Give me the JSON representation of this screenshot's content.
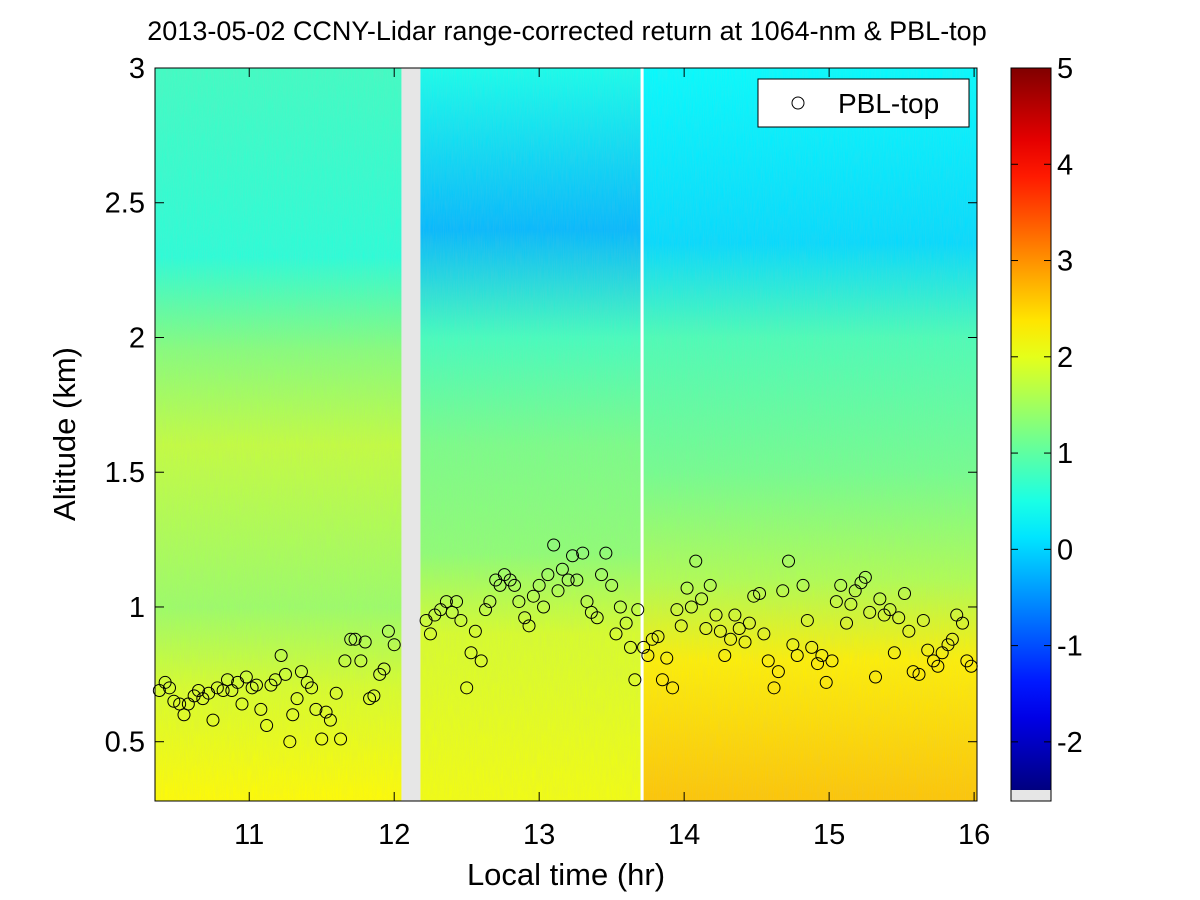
{
  "chart_data": {
    "type": "heatmap",
    "title": "2013-05-02 CCNY-Lidar range-corrected return at 1064-nm & PBL-top",
    "xlabel": "Local time (hr)",
    "ylabel": "Altitude (km)",
    "xlim": [
      10.35,
      16.02
    ],
    "ylim": [
      0.28,
      3.0
    ],
    "xticks": [
      11,
      12,
      13,
      14,
      15,
      16
    ],
    "xtick_labels": [
      "11",
      "12",
      "13",
      "14",
      "15",
      "16"
    ],
    "yticks": [
      0.5,
      1,
      1.5,
      2,
      2.5,
      3
    ],
    "ytick_labels": [
      "0.5",
      "1",
      "1.5",
      "2",
      "2.5",
      "3"
    ],
    "colorbar": {
      "range": [
        -2.5,
        5
      ],
      "ticks": [
        -2,
        -1,
        0,
        1,
        2,
        3,
        4,
        5
      ],
      "tick_labels": [
        "-2",
        "-1",
        "0",
        "1",
        "2",
        "3",
        "4",
        "5"
      ],
      "colormap": "jet"
    },
    "data_gaps": [
      [
        12.05,
        12.18
      ],
      [
        13.7,
        13.72
      ]
    ],
    "legend": {
      "entries": [
        "PBL-top"
      ],
      "position": "top-right",
      "marker": "open-circle"
    },
    "field_profiles": [
      {
        "segment": "10.35-12.05 h",
        "altitudes_km": [
          0.3,
          0.7,
          1.0,
          1.6,
          1.95,
          2.3,
          3.0
        ],
        "values": [
          2.2,
          1.9,
          1.45,
          1.75,
          1.3,
          0.6,
          0.75
        ]
      },
      {
        "segment": "12.18-13.7 h",
        "altitudes_km": [
          0.3,
          0.9,
          1.2,
          1.6,
          2.0,
          2.4,
          3.0
        ],
        "values": [
          2.1,
          1.9,
          1.35,
          1.2,
          0.8,
          -0.2,
          0.45
        ]
      },
      {
        "segment": "13.72-16.02 h",
        "altitudes_km": [
          0.3,
          0.8,
          1.1,
          1.5,
          2.0,
          2.35,
          3.0
        ],
        "values": [
          2.6,
          2.3,
          1.6,
          1.15,
          0.85,
          0.05,
          0.3
        ]
      }
    ],
    "series": [
      {
        "name": "PBL-top",
        "points": [
          [
            10.38,
            0.69
          ],
          [
            10.42,
            0.72
          ],
          [
            10.45,
            0.7
          ],
          [
            10.48,
            0.65
          ],
          [
            10.52,
            0.64
          ],
          [
            10.55,
            0.6
          ],
          [
            10.58,
            0.64
          ],
          [
            10.62,
            0.67
          ],
          [
            10.65,
            0.69
          ],
          [
            10.68,
            0.66
          ],
          [
            10.72,
            0.68
          ],
          [
            10.75,
            0.58
          ],
          [
            10.78,
            0.7
          ],
          [
            10.82,
            0.69
          ],
          [
            10.85,
            0.73
          ],
          [
            10.88,
            0.69
          ],
          [
            10.92,
            0.72
          ],
          [
            10.95,
            0.64
          ],
          [
            10.98,
            0.74
          ],
          [
            11.02,
            0.7
          ],
          [
            11.05,
            0.71
          ],
          [
            11.08,
            0.62
          ],
          [
            11.12,
            0.56
          ],
          [
            11.15,
            0.71
          ],
          [
            11.18,
            0.73
          ],
          [
            11.22,
            0.82
          ],
          [
            11.25,
            0.75
          ],
          [
            11.28,
            0.5
          ],
          [
            11.3,
            0.6
          ],
          [
            11.33,
            0.66
          ],
          [
            11.36,
            0.76
          ],
          [
            11.4,
            0.72
          ],
          [
            11.43,
            0.7
          ],
          [
            11.46,
            0.62
          ],
          [
            11.5,
            0.51
          ],
          [
            11.53,
            0.61
          ],
          [
            11.56,
            0.58
          ],
          [
            11.6,
            0.68
          ],
          [
            11.63,
            0.51
          ],
          [
            11.66,
            0.8
          ],
          [
            11.7,
            0.88
          ],
          [
            11.73,
            0.88
          ],
          [
            11.77,
            0.8
          ],
          [
            11.8,
            0.87
          ],
          [
            11.83,
            0.66
          ],
          [
            11.86,
            0.67
          ],
          [
            11.9,
            0.75
          ],
          [
            11.93,
            0.77
          ],
          [
            11.96,
            0.91
          ],
          [
            12.0,
            0.86
          ],
          [
            12.22,
            0.95
          ],
          [
            12.25,
            0.9
          ],
          [
            12.28,
            0.97
          ],
          [
            12.32,
            0.99
          ],
          [
            12.36,
            1.02
          ],
          [
            12.4,
            0.98
          ],
          [
            12.43,
            1.02
          ],
          [
            12.46,
            0.95
          ],
          [
            12.5,
            0.7
          ],
          [
            12.53,
            0.83
          ],
          [
            12.56,
            0.91
          ],
          [
            12.6,
            0.8
          ],
          [
            12.63,
            0.99
          ],
          [
            12.66,
            1.02
          ],
          [
            12.7,
            1.1
          ],
          [
            12.73,
            1.08
          ],
          [
            12.76,
            1.12
          ],
          [
            12.8,
            1.1
          ],
          [
            12.83,
            1.08
          ],
          [
            12.86,
            1.02
          ],
          [
            12.9,
            0.96
          ],
          [
            12.93,
            0.93
          ],
          [
            12.96,
            1.04
          ],
          [
            13.0,
            1.08
          ],
          [
            13.03,
            1.0
          ],
          [
            13.06,
            1.12
          ],
          [
            13.1,
            1.23
          ],
          [
            13.13,
            1.06
          ],
          [
            13.16,
            1.14
          ],
          [
            13.2,
            1.1
          ],
          [
            13.23,
            1.19
          ],
          [
            13.26,
            1.1
          ],
          [
            13.3,
            1.2
          ],
          [
            13.33,
            1.02
          ],
          [
            13.36,
            0.98
          ],
          [
            13.4,
            0.96
          ],
          [
            13.43,
            1.12
          ],
          [
            13.46,
            1.2
          ],
          [
            13.5,
            1.08
          ],
          [
            13.53,
            0.9
          ],
          [
            13.56,
            1.0
          ],
          [
            13.6,
            0.94
          ],
          [
            13.63,
            0.85
          ],
          [
            13.66,
            0.73
          ],
          [
            13.68,
            0.99
          ],
          [
            13.72,
            0.85
          ],
          [
            13.75,
            0.82
          ],
          [
            13.78,
            0.88
          ],
          [
            13.82,
            0.89
          ],
          [
            13.85,
            0.73
          ],
          [
            13.88,
            0.81
          ],
          [
            13.92,
            0.7
          ],
          [
            13.95,
            0.99
          ],
          [
            13.98,
            0.93
          ],
          [
            14.02,
            1.07
          ],
          [
            14.05,
            1.0
          ],
          [
            14.08,
            1.17
          ],
          [
            14.12,
            1.03
          ],
          [
            14.15,
            0.92
          ],
          [
            14.18,
            1.08
          ],
          [
            14.22,
            0.97
          ],
          [
            14.25,
            0.91
          ],
          [
            14.28,
            0.82
          ],
          [
            14.32,
            0.88
          ],
          [
            14.35,
            0.97
          ],
          [
            14.38,
            0.92
          ],
          [
            14.42,
            0.87
          ],
          [
            14.45,
            0.94
          ],
          [
            14.48,
            1.04
          ],
          [
            14.52,
            1.05
          ],
          [
            14.55,
            0.9
          ],
          [
            14.58,
            0.8
          ],
          [
            14.62,
            0.7
          ],
          [
            14.65,
            0.76
          ],
          [
            14.68,
            1.06
          ],
          [
            14.72,
            1.17
          ],
          [
            14.75,
            0.86
          ],
          [
            14.78,
            0.82
          ],
          [
            14.82,
            1.08
          ],
          [
            14.85,
            0.95
          ],
          [
            14.88,
            0.85
          ],
          [
            14.92,
            0.79
          ],
          [
            14.95,
            0.82
          ],
          [
            14.98,
            0.72
          ],
          [
            15.02,
            0.8
          ],
          [
            15.05,
            1.02
          ],
          [
            15.08,
            1.08
          ],
          [
            15.12,
            0.94
          ],
          [
            15.15,
            1.01
          ],
          [
            15.18,
            1.06
          ],
          [
            15.22,
            1.09
          ],
          [
            15.25,
            1.11
          ],
          [
            15.28,
            0.98
          ],
          [
            15.32,
            0.74
          ],
          [
            15.35,
            1.03
          ],
          [
            15.38,
            0.97
          ],
          [
            15.42,
            0.99
          ],
          [
            15.45,
            0.83
          ],
          [
            15.48,
            0.96
          ],
          [
            15.52,
            1.05
          ],
          [
            15.55,
            0.91
          ],
          [
            15.58,
            0.76
          ],
          [
            15.62,
            0.75
          ],
          [
            15.65,
            0.95
          ],
          [
            15.68,
            0.84
          ],
          [
            15.72,
            0.8
          ],
          [
            15.75,
            0.78
          ],
          [
            15.78,
            0.83
          ],
          [
            15.82,
            0.86
          ],
          [
            15.85,
            0.88
          ],
          [
            15.88,
            0.97
          ],
          [
            15.92,
            0.94
          ],
          [
            15.95,
            0.8
          ],
          [
            15.98,
            0.78
          ]
        ]
      }
    ]
  }
}
